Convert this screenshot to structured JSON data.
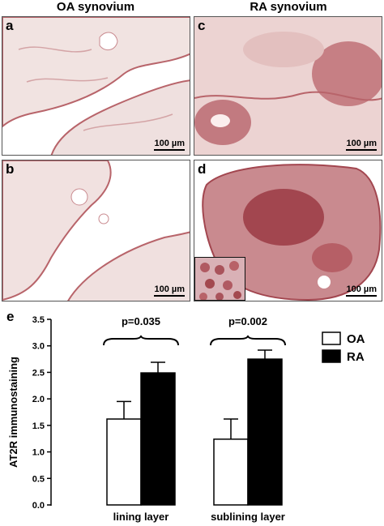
{
  "columns": {
    "left": "OA synovium",
    "right": "RA synovium"
  },
  "panels": [
    {
      "label": "a",
      "scale": "100 µm"
    },
    {
      "label": "c",
      "scale": "100 µm"
    },
    {
      "label": "b",
      "scale": "100 µm"
    },
    {
      "label": "d",
      "scale": "100 µm"
    }
  ],
  "colors": {
    "tissue_pale": "#f1e3e1",
    "tissue_stain": "#b8646a",
    "tissue_dense": "#a2464f",
    "background": "#ffffff"
  },
  "chart_data": {
    "type": "bar",
    "panel_label": "e",
    "categories": [
      "lining layer",
      "sublining layer"
    ],
    "series": [
      {
        "name": "OA",
        "values": [
          1.62,
          1.24
        ],
        "errors": [
          0.33,
          0.38
        ],
        "fill": "#ffffff"
      },
      {
        "name": "RA",
        "values": [
          2.49,
          2.75
        ],
        "errors": [
          0.2,
          0.17
        ],
        "fill": "#000000"
      }
    ],
    "ylabel": "AT2R immunostaining",
    "xlabel": "",
    "ylim": [
      0,
      3.5
    ],
    "yticks": [
      "0.0",
      "0.5",
      "1.0",
      "1.5",
      "2.0",
      "2.5",
      "3.0",
      "3.5"
    ],
    "annotations": [
      "p=0.035",
      "p=0.002"
    ],
    "legend_position": "top-right",
    "grid": false
  }
}
